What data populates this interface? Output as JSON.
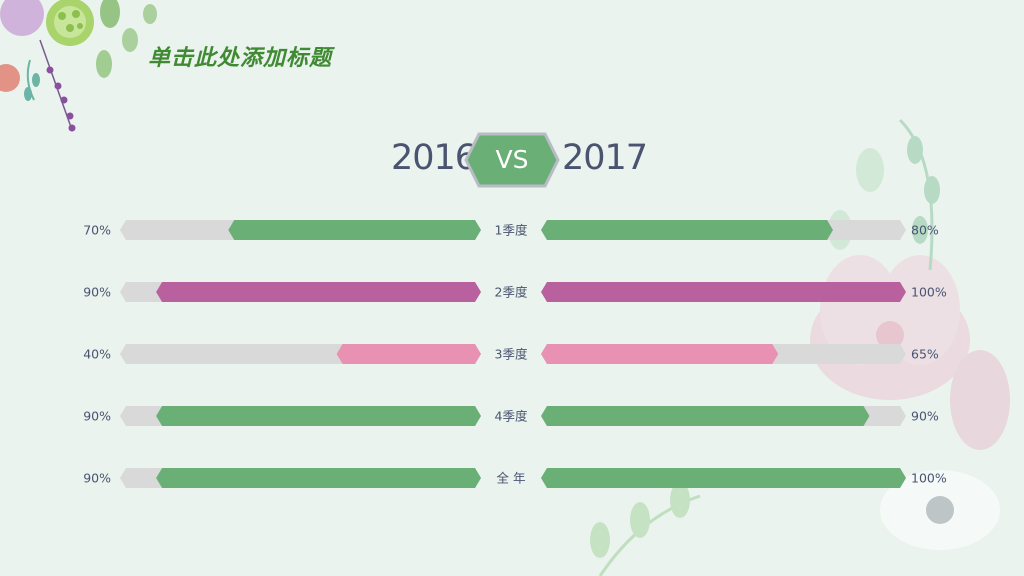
{
  "page": {
    "title": "单击此处添加标题",
    "vs_label": "VS",
    "left_year": "2016",
    "right_year": "2017"
  },
  "colors": {
    "background": "#eaf3ee",
    "track": "#d9d9d9",
    "green": "#6aaf76",
    "purple": "#b8619e",
    "pink": "#e891b3",
    "title": "#3f8a33",
    "text": "#4a5470",
    "vs_fill": "#6aaf76",
    "vs_stroke": "#b8bcc4"
  },
  "chart_data": {
    "type": "bar",
    "orientation": "horizontal-butterfly",
    "categories": [
      "1季度",
      "2季度",
      "3季度",
      "4季度",
      "全 年"
    ],
    "xlim": [
      0,
      100
    ],
    "series": [
      {
        "name": "2016",
        "values": [
          70,
          90,
          40,
          90,
          90
        ],
        "labels": [
          "70%",
          "90%",
          "40%",
          "90%",
          "90%"
        ]
      },
      {
        "name": "2017",
        "values": [
          80,
          100,
          65,
          90,
          100
        ],
        "labels": [
          "80%",
          "100%",
          "65%",
          "90%",
          "100%"
        ]
      }
    ],
    "bar_colors": [
      "green",
      "purple",
      "pink",
      "green",
      "green"
    ]
  }
}
